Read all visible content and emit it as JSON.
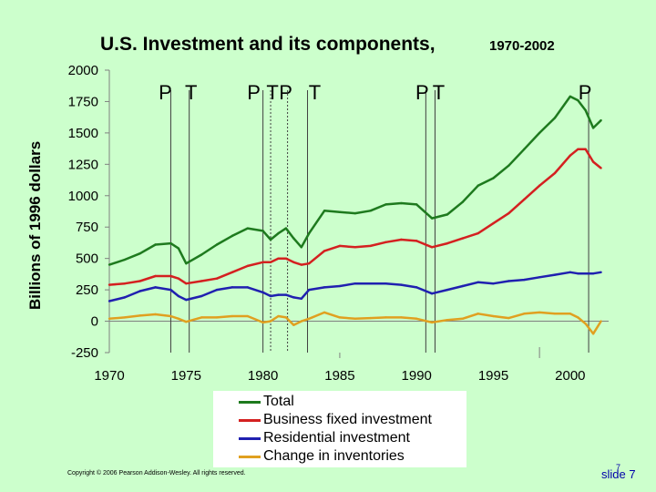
{
  "chart_data": {
    "type": "line",
    "title": "U.S. Investment and its components,",
    "subtitle": "1970-2002",
    "ylabel": "Billions of 1996 dollars",
    "xlabel": "",
    "xlim": [
      1970,
      2002.5
    ],
    "ylim": [
      -250,
      2000
    ],
    "x_ticks": [
      1970,
      1975,
      1980,
      1985,
      1990,
      1995,
      2000
    ],
    "y_ticks": [
      -250,
      0,
      250,
      500,
      750,
      1000,
      1250,
      1500,
      1750,
      2000
    ],
    "x": [
      1970,
      1971,
      1972,
      1973,
      1974,
      1974.5,
      1975,
      1976,
      1977,
      1978,
      1979,
      1980,
      1980.5,
      1981,
      1981.5,
      1982,
      1982.5,
      1983,
      1984,
      1985,
      1986,
      1987,
      1988,
      1989,
      1990,
      1991,
      1992,
      1993,
      1994,
      1995,
      1996,
      1997,
      1998,
      1999,
      2000,
      2000.5,
      2001,
      2001.5,
      2002
    ],
    "series": [
      {
        "name": "Total",
        "color": "#1e7a1e",
        "values": [
          450,
          490,
          540,
          610,
          620,
          580,
          460,
          530,
          610,
          680,
          740,
          720,
          650,
          700,
          740,
          660,
          590,
          700,
          880,
          870,
          860,
          880,
          930,
          940,
          930,
          820,
          850,
          950,
          1080,
          1140,
          1240,
          1370,
          1500,
          1620,
          1790,
          1760,
          1680,
          1540,
          1600
        ]
      },
      {
        "name": "Business fixed investment",
        "color": "#d42020",
        "values": [
          290,
          300,
          320,
          360,
          360,
          340,
          300,
          320,
          340,
          390,
          440,
          470,
          470,
          500,
          500,
          470,
          450,
          460,
          560,
          600,
          590,
          600,
          630,
          650,
          640,
          590,
          620,
          660,
          700,
          780,
          860,
          970,
          1080,
          1180,
          1320,
          1370,
          1370,
          1270,
          1220
        ]
      },
      {
        "name": "Residential investment",
        "color": "#2020b0",
        "values": [
          160,
          190,
          240,
          270,
          250,
          200,
          170,
          200,
          250,
          270,
          270,
          230,
          200,
          210,
          210,
          190,
          180,
          250,
          270,
          280,
          300,
          300,
          300,
          290,
          270,
          220,
          250,
          280,
          310,
          300,
          320,
          330,
          350,
          370,
          390,
          380,
          380,
          380,
          390
        ]
      },
      {
        "name": "Change in inventories",
        "color": "#e0a020",
        "values": [
          20,
          30,
          45,
          55,
          40,
          20,
          -5,
          30,
          30,
          40,
          40,
          -10,
          0,
          40,
          30,
          -30,
          0,
          20,
          70,
          30,
          20,
          25,
          30,
          30,
          20,
          -10,
          10,
          20,
          60,
          40,
          25,
          60,
          70,
          60,
          60,
          30,
          -20,
          -100,
          0
        ]
      }
    ],
    "annotations": [
      {
        "label": "P",
        "year": 1974
      },
      {
        "label": "T",
        "year": 1975.2
      },
      {
        "label": "P",
        "year": 1980
      },
      {
        "label": "T",
        "year": 1980.5
      },
      {
        "label": "P",
        "year": 1981.6
      },
      {
        "label": "T",
        "year": 1982.9
      },
      {
        "label": "P",
        "year": 1990.6
      },
      {
        "label": "T",
        "year": 1991.2
      },
      {
        "label": "P",
        "year": 2001.2
      }
    ]
  },
  "footer": {
    "copyright": "Copyright © 2006 Pearson Addison-Wesley. All rights reserved.",
    "slide_label": "slide 7",
    "slide_superscript": "7"
  }
}
